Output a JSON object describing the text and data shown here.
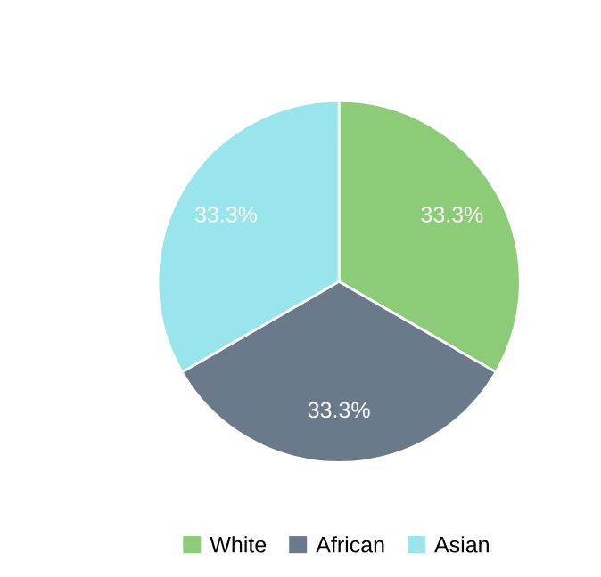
{
  "chart_data": {
    "type": "pie",
    "categories": [
      "White",
      "African",
      "Asian"
    ],
    "values": [
      33.3,
      33.3,
      33.3
    ],
    "colors": [
      "#8ccb78",
      "#6b7a8b",
      "#99e5ec"
    ],
    "value_labels": [
      "33.3%",
      "33.3%",
      "33.3%"
    ],
    "legend": "bottom"
  }
}
